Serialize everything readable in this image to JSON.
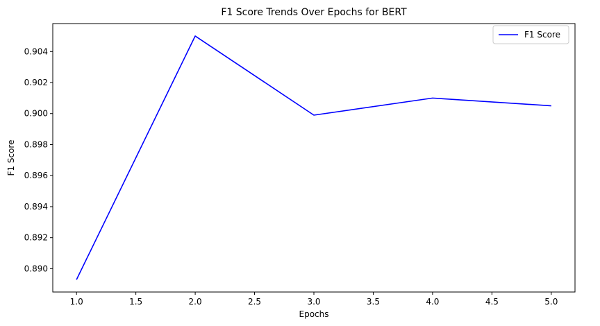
{
  "chart_data": {
    "type": "line",
    "title": "F1 Score Trends Over Epochs for BERT",
    "xlabel": "Epochs",
    "ylabel": "F1 Score",
    "x": [
      1,
      2,
      3,
      4,
      5
    ],
    "series": [
      {
        "name": "F1 Score",
        "values": [
          0.8893,
          0.905,
          0.8999,
          0.901,
          0.9005
        ],
        "color": "#0000ff"
      }
    ],
    "xlim": [
      0.8,
      5.2
    ],
    "ylim": [
      0.8885,
      0.9058
    ],
    "xticks": [
      1.0,
      1.5,
      2.0,
      2.5,
      3.0,
      3.5,
      4.0,
      4.5,
      5.0
    ],
    "xtick_labels": [
      "1.0",
      "1.5",
      "2.0",
      "2.5",
      "3.0",
      "3.5",
      "4.0",
      "4.5",
      "5.0"
    ],
    "yticks": [
      0.89,
      0.892,
      0.894,
      0.896,
      0.898,
      0.9,
      0.902,
      0.904
    ],
    "ytick_labels": [
      "0.890",
      "0.892",
      "0.894",
      "0.896",
      "0.898",
      "0.900",
      "0.902",
      "0.904"
    ],
    "grid": false,
    "legend_position": "top-right"
  }
}
